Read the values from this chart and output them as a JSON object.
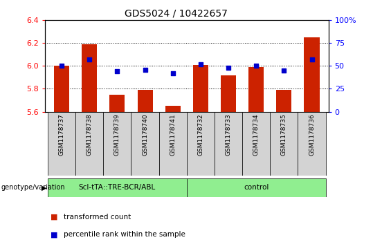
{
  "title": "GDS5024 / 10422657",
  "samples": [
    "GSM1178737",
    "GSM1178738",
    "GSM1178739",
    "GSM1178740",
    "GSM1178741",
    "GSM1178732",
    "GSM1178733",
    "GSM1178734",
    "GSM1178735",
    "GSM1178736"
  ],
  "red_values": [
    6.0,
    6.19,
    5.75,
    5.79,
    5.65,
    6.01,
    5.92,
    5.99,
    5.79,
    6.25
  ],
  "blue_values": [
    50,
    57,
    44,
    46,
    42,
    52,
    48,
    50,
    45,
    57
  ],
  "ylim": [
    5.6,
    6.4
  ],
  "y2lim": [
    0,
    100
  ],
  "yticks": [
    5.6,
    5.8,
    6.0,
    6.2,
    6.4
  ],
  "y2ticks": [
    0,
    25,
    50,
    75,
    100
  ],
  "y2ticklabels": [
    "0",
    "25",
    "50",
    "75",
    "100%"
  ],
  "group1_label": "ScI-tTA::TRE-BCR/ABL",
  "group2_label": "control",
  "group_label_prefix": "genotype/variation",
  "legend_red": "transformed count",
  "legend_blue": "percentile rank within the sample",
  "bar_color": "#cc2200",
  "dot_color": "#0000cc",
  "sample_box_color": "#d3d3d3",
  "group_box_color": "#90ee90",
  "bar_width": 0.55,
  "base_value": 5.6
}
